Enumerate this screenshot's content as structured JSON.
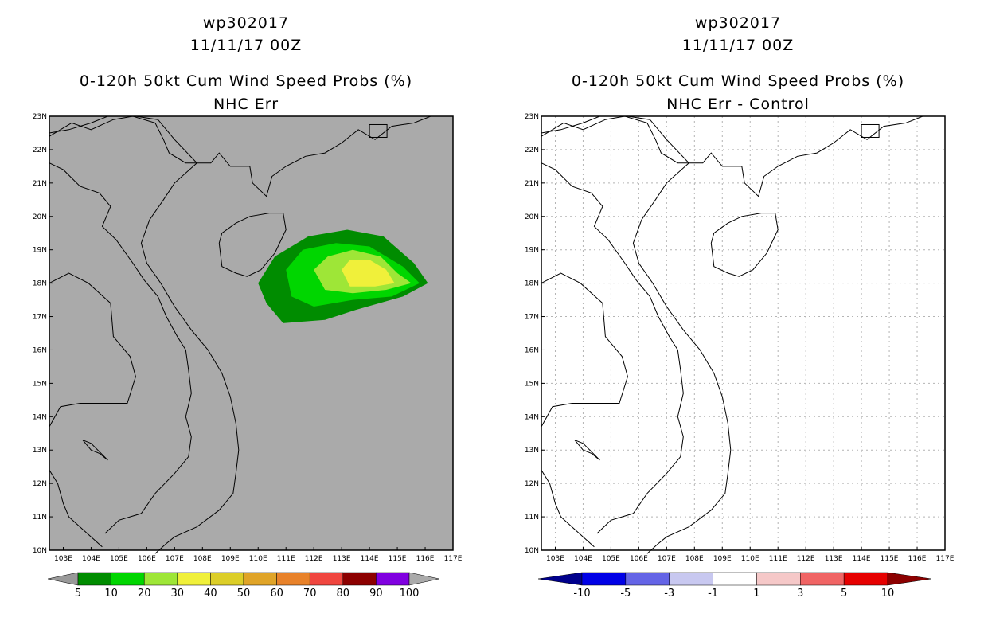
{
  "panels": [
    {
      "storm_id": "wp302017",
      "datetime": "11/11/17 00Z",
      "title": "0-120h 50kt Cum Wind Speed Probs (%)",
      "subtitle": "NHC Err",
      "background": "#aaaaaa",
      "gridlines": false,
      "colorbar": {
        "labels": [
          "5",
          "10",
          "20",
          "30",
          "40",
          "50",
          "60",
          "70",
          "80",
          "90",
          "100"
        ],
        "colors": [
          "#999999",
          "#008c00",
          "#00d600",
          "#9ee637",
          "#f0f03a",
          "#dcce28",
          "#e0a428",
          "#e8822a",
          "#f0463f",
          "#8c0000",
          "#8000e0",
          "#aaaaaa"
        ]
      },
      "probability_field": {
        "levels_percent": [
          5,
          10,
          20,
          30
        ],
        "colors": [
          "#008c00",
          "#00d600",
          "#9ee637",
          "#f0f03a"
        ],
        "center_lat_lon": [
          "18N",
          "114E"
        ]
      }
    },
    {
      "storm_id": "wp302017",
      "datetime": "11/11/17 00Z",
      "title": "0-120h 50kt Cum Wind Speed Probs (%)",
      "subtitle": "NHC Err - Control",
      "background": "#ffffff",
      "gridlines": true,
      "colorbar": {
        "labels": [
          "-10",
          "-5",
          "-3",
          "-1",
          "1",
          "3",
          "5",
          "10"
        ],
        "colors": [
          "#00008c",
          "#0000e6",
          "#6464e6",
          "#c8c8f0",
          "#ffffff",
          "#f5c8c8",
          "#f06464",
          "#e60000",
          "#8c0000"
        ]
      }
    }
  ],
  "axes": {
    "lon_labels": [
      "103E",
      "104E",
      "105E",
      "106E",
      "107E",
      "108E",
      "109E",
      "110E",
      "111E",
      "112E",
      "113E",
      "114E",
      "115E",
      "116E",
      "117E"
    ],
    "lat_labels": [
      "10N",
      "11N",
      "12N",
      "13N",
      "14N",
      "15N",
      "16N",
      "17N",
      "18N",
      "19N",
      "20N",
      "21N",
      "22N",
      "23N"
    ]
  }
}
